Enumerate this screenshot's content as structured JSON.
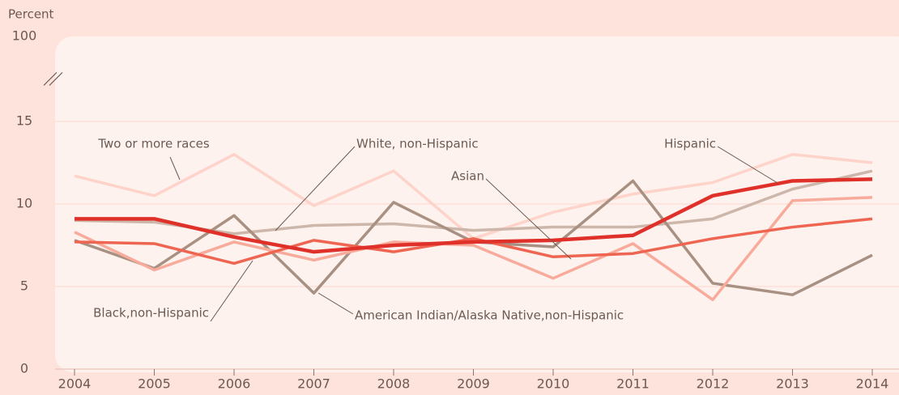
{
  "chart_data": {
    "type": "line",
    "y_axis_label": "Percent",
    "x": [
      2004,
      2005,
      2006,
      2007,
      2008,
      2009,
      2010,
      2011,
      2012,
      2013,
      2014
    ],
    "xlim": [
      2004,
      2014
    ],
    "xticks": [
      2004,
      2005,
      2006,
      2007,
      2008,
      2009,
      2010,
      2011,
      2012,
      2013,
      2014
    ],
    "ylim": [
      0,
      100
    ],
    "axis_break": [
      15,
      100
    ],
    "yticks": [
      0,
      5,
      10,
      15,
      100
    ],
    "grid": true,
    "series": [
      {
        "name": "Two or more races",
        "color": "#fdd3ca",
        "values": [
          11.7,
          10.5,
          13.0,
          9.9,
          12.0,
          7.9,
          9.5,
          10.6,
          11.3,
          13.0,
          12.5
        ]
      },
      {
        "name": "White, non-Hispanic",
        "color": "#cdb6aa",
        "values": [
          9.0,
          8.9,
          8.2,
          8.7,
          8.8,
          8.4,
          8.6,
          8.6,
          9.1,
          10.9,
          12.0
        ]
      },
      {
        "name": "American Indian/Alaska Native,non-Hispanic",
        "color": "#a89082",
        "values": [
          7.8,
          6.1,
          9.3,
          4.6,
          10.1,
          7.7,
          7.4,
          11.4,
          5.2,
          4.5,
          6.9
        ]
      },
      {
        "name": "Asian",
        "color": "#f8aa9b",
        "values": [
          8.3,
          6.0,
          7.7,
          6.6,
          7.7,
          7.5,
          5.5,
          7.6,
          4.2,
          10.2,
          10.4
        ]
      },
      {
        "name": "Black,non-Hispanic",
        "color": "#ee6552",
        "values": [
          7.7,
          7.6,
          6.4,
          7.8,
          7.1,
          7.9,
          6.8,
          7.0,
          7.9,
          8.6,
          9.1
        ]
      },
      {
        "name": "Hispanic",
        "color": "#e0302a",
        "values": [
          9.1,
          9.1,
          8.0,
          7.1,
          7.5,
          7.7,
          7.8,
          8.1,
          10.5,
          11.4,
          11.5
        ]
      }
    ]
  }
}
